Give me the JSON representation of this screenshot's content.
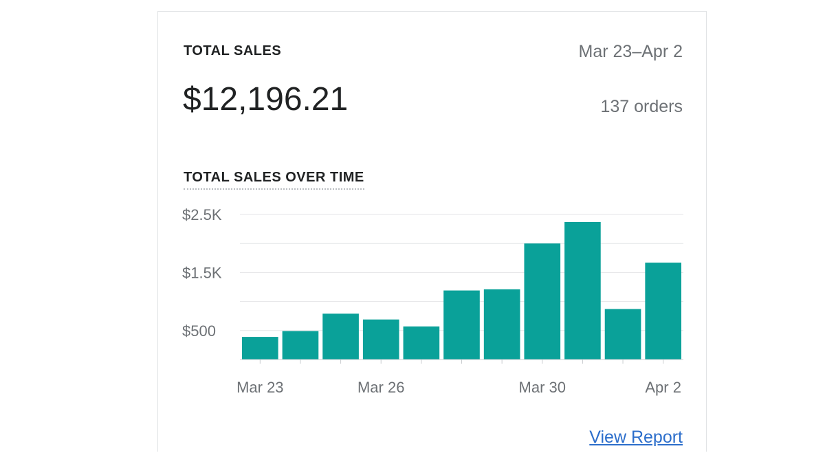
{
  "card": {
    "title": "TOTAL SALES",
    "date_range": "Mar 23–Apr 2",
    "total_amount": "$12,196.21",
    "order_count": "137 orders",
    "chart_title": "TOTAL SALES OVER TIME",
    "view_report_label": "View Report"
  },
  "colors": {
    "bar": "#0aa199",
    "grid": "#e4e5e7",
    "tick_text": "#6d7175",
    "link": "#2c6ecb"
  },
  "chart_data": {
    "type": "bar",
    "categories": [
      "Mar 23",
      "Mar 24",
      "Mar 25",
      "Mar 26",
      "Mar 27",
      "Mar 28",
      "Mar 29",
      "Mar 30",
      "Mar 31",
      "Apr 1",
      "Apr 2"
    ],
    "values": [
      390,
      490,
      790,
      690,
      570,
      1190,
      1210,
      2000,
      2370,
      870,
      1670
    ],
    "ylim": [
      0,
      2500
    ],
    "y_ticks": [
      {
        "value": 500,
        "label": "$500"
      },
      {
        "value": 1500,
        "label": "$1.5K"
      },
      {
        "value": 2500,
        "label": "$2.5K"
      }
    ],
    "x_tick_labels": [
      {
        "category": "Mar 23",
        "label": "Mar 23"
      },
      {
        "category": "Mar 26",
        "label": "Mar 26"
      },
      {
        "category": "Mar 30",
        "label": "Mar 30"
      },
      {
        "category": "Apr 2",
        "label": "Apr 2"
      }
    ],
    "title": "TOTAL SALES OVER TIME",
    "xlabel": "",
    "ylabel": "",
    "grid": true,
    "legend": "none"
  }
}
